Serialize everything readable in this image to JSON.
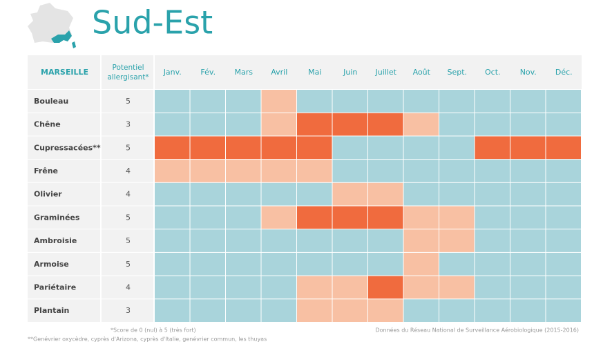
{
  "header": {
    "title": "Sud-Est"
  },
  "table": {
    "city": "MARSEILLE",
    "potential_header": [
      "Potentiel",
      "allergisant*"
    ],
    "months": [
      "Janv.",
      "Fév.",
      "Mars",
      "Avril",
      "Mai",
      "Juin",
      "Juillet",
      "Août",
      "Sept.",
      "Oct.",
      "Nov.",
      "Déc."
    ],
    "level_colors": [
      "#a9d4db",
      "#f8c0a3",
      "#f06b3e"
    ],
    "rows": [
      {
        "name": "Bouleau",
        "potential": 5,
        "levels": [
          0,
          0,
          0,
          1,
          0,
          0,
          0,
          0,
          0,
          0,
          0,
          0
        ]
      },
      {
        "name": "Chêne",
        "potential": 3,
        "levels": [
          0,
          0,
          0,
          1,
          2,
          2,
          2,
          1,
          0,
          0,
          0,
          0
        ]
      },
      {
        "name": "Cupressacées**",
        "potential": 5,
        "levels": [
          2,
          2,
          2,
          2,
          2,
          0,
          0,
          0,
          0,
          2,
          2,
          2
        ]
      },
      {
        "name": "Frêne",
        "potential": 4,
        "levels": [
          1,
          1,
          1,
          1,
          1,
          0,
          0,
          0,
          0,
          0,
          0,
          0
        ]
      },
      {
        "name": "Olivier",
        "potential": 4,
        "levels": [
          0,
          0,
          0,
          0,
          0,
          1,
          1,
          0,
          0,
          0,
          0,
          0
        ]
      },
      {
        "name": "Graminées",
        "potential": 5,
        "levels": [
          0,
          0,
          0,
          1,
          2,
          2,
          2,
          1,
          1,
          0,
          0,
          0
        ]
      },
      {
        "name": "Ambroisie",
        "potential": 5,
        "levels": [
          0,
          0,
          0,
          0,
          0,
          0,
          0,
          1,
          1,
          0,
          0,
          0
        ]
      },
      {
        "name": "Armoise",
        "potential": 5,
        "levels": [
          0,
          0,
          0,
          0,
          0,
          0,
          0,
          1,
          0,
          0,
          0,
          0
        ]
      },
      {
        "name": "Pariétaire",
        "potential": 4,
        "levels": [
          0,
          0,
          0,
          0,
          1,
          1,
          2,
          1,
          1,
          0,
          0,
          0
        ]
      },
      {
        "name": "Plantain",
        "potential": 3,
        "levels": [
          0,
          0,
          0,
          0,
          1,
          1,
          1,
          0,
          0,
          0,
          0,
          0
        ]
      }
    ]
  },
  "footnotes": {
    "score": "*Score de 0 (nul) à 5 (très fort)",
    "source": "Données du Réseau National de Surveillance Aérobiologique (2015-2016)",
    "cypress": "**Genévrier oxycèdre, cyprès d'Arizona, cyprès d'Italie, genévrier commun, les thuyas"
  }
}
